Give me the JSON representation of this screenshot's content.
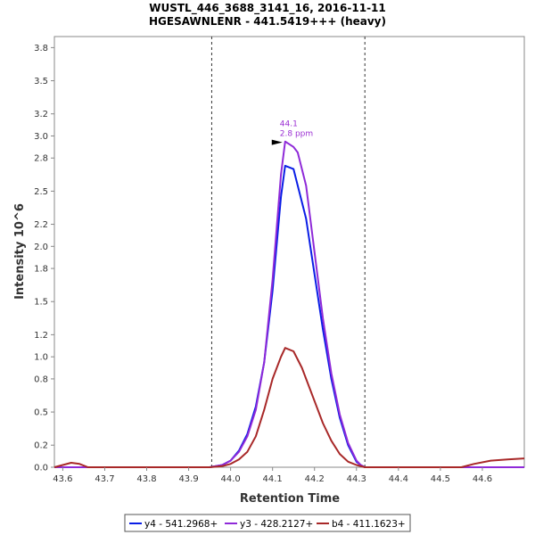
{
  "chart_data": {
    "type": "line",
    "title": "WUSTL_446_3688_3141_16, 2016-11-11",
    "subtitle": "HGESAWNLENR - 441.5419+++ (heavy)",
    "xlabel": "Retention Time",
    "ylabel": "Intensity 10^6",
    "xlim": [
      43.58,
      44.7
    ],
    "ylim": [
      0,
      3.9
    ],
    "x_ticks": [
      "43.6",
      "43.7",
      "43.8",
      "43.9",
      "44.0",
      "44.1",
      "44.2",
      "44.3",
      "44.4",
      "44.5",
      "44.6"
    ],
    "y_ticks": [
      "0.0",
      "0.2",
      "0.5",
      "0.8",
      "1.0",
      "1.2",
      "1.5",
      "1.8",
      "2.0",
      "2.2",
      "2.5",
      "2.8",
      "3.0",
      "3.2",
      "3.5",
      "3.8"
    ],
    "integration_boundaries": [
      43.955,
      44.32
    ],
    "annotation": {
      "x": 44.13,
      "y": 2.95,
      "rt_label": "44.1",
      "ppm_label": "2.8 ppm",
      "color": "#9b2fd3"
    },
    "legend_position": "bottom-center",
    "series": [
      {
        "name": "y4 - 541.2968+",
        "color": "#0a1ee6",
        "x": [
          43.58,
          43.95,
          43.98,
          44.0,
          44.02,
          44.04,
          44.06,
          44.08,
          44.1,
          44.12,
          44.13,
          44.15,
          44.18,
          44.2,
          44.22,
          44.24,
          44.26,
          44.28,
          44.3,
          44.31,
          44.32,
          44.7
        ],
        "values": [
          0.0,
          0.0,
          0.02,
          0.06,
          0.15,
          0.3,
          0.55,
          0.95,
          1.6,
          2.45,
          2.73,
          2.7,
          2.25,
          1.75,
          1.25,
          0.8,
          0.45,
          0.2,
          0.05,
          0.02,
          0.0,
          0.0
        ]
      },
      {
        "name": "y3 - 428.2127+",
        "color": "#8f2ad8",
        "x": [
          43.58,
          43.95,
          43.98,
          44.0,
          44.02,
          44.04,
          44.06,
          44.08,
          44.1,
          44.12,
          44.13,
          44.15,
          44.16,
          44.18,
          44.2,
          44.22,
          44.24,
          44.26,
          44.28,
          44.3,
          44.31,
          44.32,
          44.7
        ],
        "values": [
          0.0,
          0.0,
          0.02,
          0.06,
          0.14,
          0.28,
          0.52,
          0.95,
          1.7,
          2.65,
          2.95,
          2.9,
          2.85,
          2.55,
          1.95,
          1.35,
          0.85,
          0.48,
          0.22,
          0.06,
          0.02,
          0.0,
          0.0
        ]
      },
      {
        "name": "b4 - 411.1623+",
        "color": "#a82828",
        "x": [
          43.58,
          43.6,
          43.62,
          43.64,
          43.66,
          43.7,
          43.95,
          43.98,
          44.0,
          44.02,
          44.04,
          44.06,
          44.08,
          44.1,
          44.12,
          44.13,
          44.15,
          44.17,
          44.2,
          44.22,
          44.24,
          44.26,
          44.28,
          44.3,
          44.32,
          44.55,
          44.58,
          44.62,
          44.66,
          44.7
        ],
        "values": [
          0.0,
          0.02,
          0.04,
          0.03,
          0.0,
          0.0,
          0.0,
          0.01,
          0.03,
          0.07,
          0.14,
          0.28,
          0.52,
          0.8,
          1.0,
          1.08,
          1.05,
          0.9,
          0.6,
          0.4,
          0.24,
          0.12,
          0.05,
          0.02,
          0.0,
          0.0,
          0.03,
          0.06,
          0.07,
          0.08
        ]
      }
    ]
  }
}
